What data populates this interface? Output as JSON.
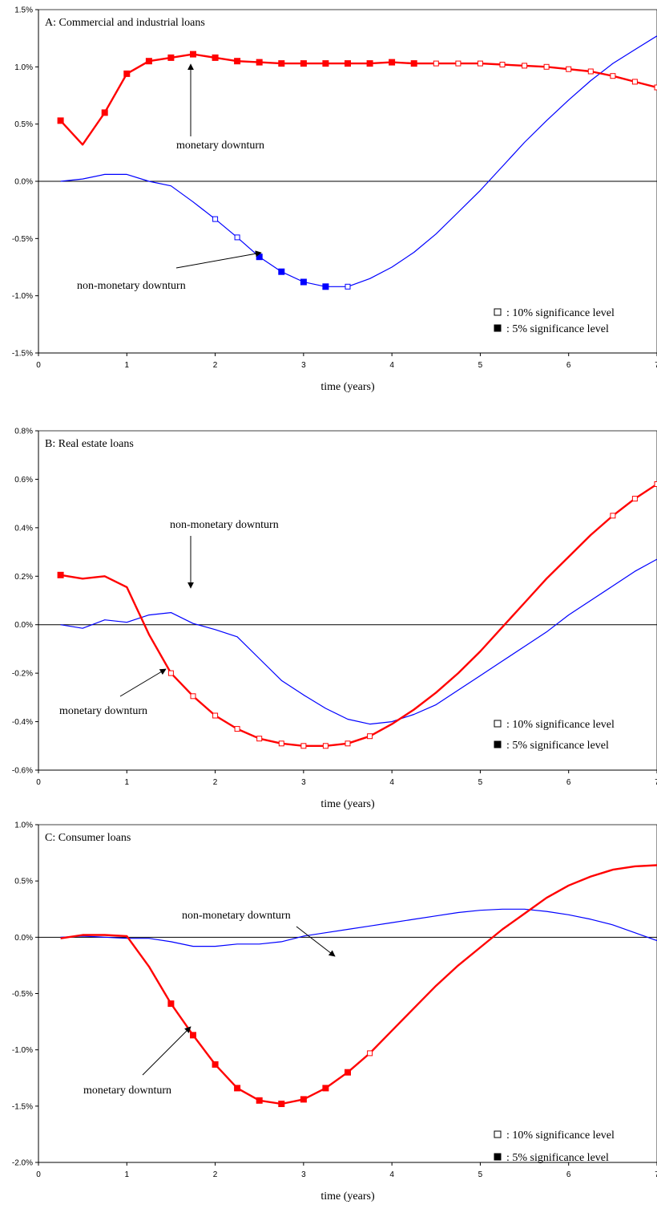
{
  "colors": {
    "monetary": "#ff0000",
    "non_monetary": "#0000ff",
    "axis": "#000000"
  },
  "legend": {
    "open_marker": "□",
    "filled_marker": "■",
    "ten_pct": ": 10% significance level",
    "five_pct": ":   5% significance level"
  },
  "chart_data": [
    {
      "type": "line",
      "title": "A: Commercial and industrial loans",
      "xlabel": "time (years)",
      "ylabel": "",
      "xlim": [
        0,
        7
      ],
      "ylim": [
        -0.015,
        0.015
      ],
      "x_ticks": [
        "0",
        "1",
        "2",
        "3",
        "4",
        "5",
        "6",
        "7"
      ],
      "y_ticks": [
        {
          "value": 0.015,
          "label": "1.5%"
        },
        {
          "value": 0.01,
          "label": "1.0%"
        },
        {
          "value": 0.005,
          "label": "0.5%"
        },
        {
          "value": 0,
          "label": "0.0%"
        },
        {
          "value": -0.005,
          "label": "-0.5%"
        },
        {
          "value": -0.01,
          "label": "-1.0%"
        },
        {
          "value": -0.015,
          "label": "-1.5%"
        }
      ],
      "x": [
        0.25,
        0.5,
        0.75,
        1,
        1.25,
        1.5,
        1.75,
        2,
        2.25,
        2.5,
        2.75,
        3,
        3.25,
        3.5,
        3.75,
        4,
        4.25,
        4.5,
        4.75,
        5,
        5.25,
        5.5,
        5.75,
        6,
        6.25,
        6.5,
        6.75,
        7
      ],
      "series": [
        {
          "key": "monetary",
          "values": [
            0.0053,
            0.0032,
            0.006,
            0.0094,
            0.0105,
            0.0108,
            0.0111,
            0.0108,
            0.0105,
            0.0104,
            0.0103,
            0.0103,
            0.0103,
            0.0103,
            0.0103,
            0.0104,
            0.0103,
            0.0103,
            0.0103,
            0.0103,
            0.0102,
            0.0101,
            0.01,
            0.0098,
            0.0096,
            0.0092,
            0.0087,
            0.0082
          ],
          "significance": [
            "5%",
            "",
            "5%",
            "5%",
            "5%",
            "5%",
            "5%",
            "5%",
            "5%",
            "5%",
            "5%",
            "5%",
            "5%",
            "5%",
            "5%",
            "5%",
            "5%",
            "10%",
            "10%",
            "10%",
            "10%",
            "10%",
            "10%",
            "10%",
            "10%",
            "10%",
            "10%",
            "10%"
          ]
        },
        {
          "key": "non_monetary",
          "values": [
            0.0,
            0.0002,
            0.0006,
            0.0006,
            0.0,
            -0.0004,
            -0.0018,
            -0.0033,
            -0.0049,
            -0.0066,
            -0.0079,
            -0.0088,
            -0.0092,
            -0.0092,
            -0.0085,
            -0.0075,
            -0.0062,
            -0.0046,
            -0.0027,
            -0.0008,
            0.0013,
            0.0034,
            0.0053,
            0.0071,
            0.0088,
            0.0103,
            0.0115,
            0.0127
          ],
          "significance": [
            "",
            "",
            "",
            "",
            "",
            "",
            "",
            "10%",
            "10%",
            "5%",
            "5%",
            "5%",
            "5%",
            "10%",
            "",
            "",
            "",
            "",
            "",
            "",
            "",
            "",
            "",
            "",
            "",
            "",
            "",
            ""
          ]
        }
      ],
      "annotations": [
        {
          "text": "monetary downturn",
          "series": "monetary"
        },
        {
          "text": "non-monetary downturn",
          "series": "non_monetary"
        }
      ]
    },
    {
      "type": "line",
      "title": "B: Real estate loans",
      "xlabel": "time (years)",
      "ylabel": "",
      "xlim": [
        0,
        7
      ],
      "ylim": [
        -0.006,
        0.008
      ],
      "x_ticks": [
        "0",
        "1",
        "2",
        "3",
        "4",
        "5",
        "6",
        "7"
      ],
      "y_ticks": [
        {
          "value": 0.008,
          "label": "0.8%"
        },
        {
          "value": 0.006,
          "label": "0.6%"
        },
        {
          "value": 0.004,
          "label": "0.4%"
        },
        {
          "value": 0.002,
          "label": "0.2%"
        },
        {
          "value": 0,
          "label": "0.0%"
        },
        {
          "value": -0.002,
          "label": "-0.2%"
        },
        {
          "value": -0.004,
          "label": "-0.4%"
        },
        {
          "value": -0.006,
          "label": "-0.6%"
        }
      ],
      "x": [
        0.25,
        0.5,
        0.75,
        1,
        1.25,
        1.5,
        1.75,
        2,
        2.25,
        2.5,
        2.75,
        3,
        3.25,
        3.5,
        3.75,
        4,
        4.25,
        4.5,
        4.75,
        5,
        5.25,
        5.5,
        5.75,
        6,
        6.25,
        6.5,
        6.75,
        7
      ],
      "series": [
        {
          "key": "monetary",
          "values": [
            0.00205,
            0.0019,
            0.002,
            0.00155,
            -0.0004,
            -0.002,
            -0.00295,
            -0.00375,
            -0.0043,
            -0.0047,
            -0.0049,
            -0.005,
            -0.005,
            -0.0049,
            -0.0046,
            -0.0041,
            -0.0035,
            -0.0028,
            -0.002,
            -0.0011,
            -0.0001,
            0.0009,
            0.0019,
            0.0028,
            0.0037,
            0.0045,
            0.0052,
            0.0058
          ],
          "significance": [
            "5%",
            "",
            "",
            "",
            "",
            "10%",
            "10%",
            "10%",
            "10%",
            "10%",
            "10%",
            "10%",
            "10%",
            "10%",
            "10%",
            "",
            "",
            "",
            "",
            "",
            "",
            "",
            "",
            "",
            "",
            "10%",
            "10%",
            "10%"
          ]
        },
        {
          "key": "non_monetary",
          "values": [
            0.0,
            -0.00015,
            0.0002,
            0.0001,
            0.0004,
            0.0005,
            5e-05,
            -0.0002,
            -0.0005,
            -0.0014,
            -0.0023,
            -0.0029,
            -0.00345,
            -0.0039,
            -0.0041,
            -0.004,
            -0.0037,
            -0.0033,
            -0.0027,
            -0.0021,
            -0.0015,
            -0.0009,
            -0.0003,
            0.0004,
            0.001,
            0.0016,
            0.0022,
            0.0027
          ],
          "significance": []
        }
      ],
      "annotations": [
        {
          "text": "non-monetary downturn",
          "series": "non_monetary"
        },
        {
          "text": "monetary downturn",
          "series": "monetary"
        }
      ]
    },
    {
      "type": "line",
      "title": "C: Consumer loans",
      "xlabel": "time (years)",
      "ylabel": "",
      "xlim": [
        0,
        7
      ],
      "ylim": [
        -0.02,
        0.01
      ],
      "x_ticks": [
        "0",
        "1",
        "2",
        "3",
        "4",
        "5",
        "6",
        "7"
      ],
      "y_ticks": [
        {
          "value": 0.01,
          "label": "1.0%"
        },
        {
          "value": 0.005,
          "label": "0.5%"
        },
        {
          "value": 0,
          "label": "0.0%"
        },
        {
          "value": -0.005,
          "label": "-0.5%"
        },
        {
          "value": -0.01,
          "label": "-1.0%"
        },
        {
          "value": -0.015,
          "label": "-1.5%"
        },
        {
          "value": -0.02,
          "label": "-2.0%"
        }
      ],
      "x": [
        0.25,
        0.5,
        0.75,
        1,
        1.25,
        1.5,
        1.75,
        2,
        2.25,
        2.5,
        2.75,
        3,
        3.25,
        3.5,
        3.75,
        4,
        4.25,
        4.5,
        4.75,
        5,
        5.25,
        5.5,
        5.75,
        6,
        6.25,
        6.5,
        6.75,
        7
      ],
      "series": [
        {
          "key": "monetary",
          "values": [
            -0.0001,
            0.0002,
            0.0002,
            0.0001,
            -0.0026,
            -0.0059,
            -0.0087,
            -0.0113,
            -0.0134,
            -0.0145,
            -0.0148,
            -0.0144,
            -0.0134,
            -0.012,
            -0.0103,
            -0.0083,
            -0.0063,
            -0.0043,
            -0.0025,
            -0.0009,
            0.0007,
            0.0021,
            0.0035,
            0.0046,
            0.0054,
            0.006,
            0.0063,
            0.0064
          ],
          "significance": [
            "",
            "",
            "",
            "",
            "",
            "5%",
            "5%",
            "5%",
            "5%",
            "5%",
            "5%",
            "5%",
            "5%",
            "5%",
            "10%",
            "",
            "",
            "",
            "",
            "",
            "",
            "",
            "",
            "",
            "",
            "",
            "",
            ""
          ]
        },
        {
          "key": "non_monetary",
          "values": [
            0.0,
            0.0001,
            0.0,
            -0.0001,
            -0.0001,
            -0.0004,
            -0.0008,
            -0.0008,
            -0.0006,
            -0.0006,
            -0.0004,
            0.0001,
            0.0004,
            0.0007,
            0.001,
            0.0013,
            0.0016,
            0.0019,
            0.0022,
            0.0024,
            0.0025,
            0.0025,
            0.0023,
            0.002,
            0.0016,
            0.0011,
            0.0004,
            -0.0003
          ],
          "significance": []
        }
      ],
      "annotations": [
        {
          "text": "non-monetary downturn",
          "series": "non_monetary"
        },
        {
          "text": "monetary downturn",
          "series": "monetary"
        }
      ]
    }
  ]
}
